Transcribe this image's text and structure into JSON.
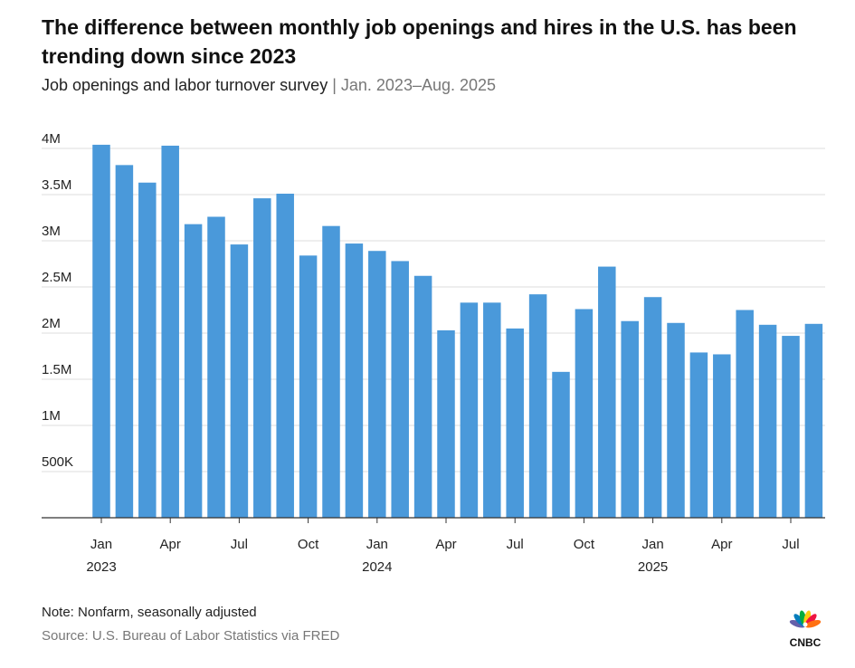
{
  "title": "The difference between monthly job openings and hires in the U.S. has been trending down since 2023",
  "subtitle": "Job openings and labor turnover survey",
  "subtitle_separator": " | ",
  "subtitle_range": "Jan. 2023–Aug. 2025",
  "note": "Note: Nonfarm, seasonally adjusted",
  "source": "Source: U.S. Bureau of Labor Statistics via FRED",
  "logo_text": "CNBC",
  "colors": {
    "bar": "#4a99da",
    "grid": "#dddddd",
    "axis": "#333333"
  },
  "chart_data": {
    "type": "bar",
    "title": "The difference between monthly job openings and hires in the U.S. has been trending down since 2023",
    "xlabel": "",
    "ylabel": "",
    "ylim": [
      0,
      4000000
    ],
    "grid": true,
    "y_ticks": [
      {
        "value": 500000,
        "label": "500K"
      },
      {
        "value": 1000000,
        "label": "1M"
      },
      {
        "value": 1500000,
        "label": "1.5M"
      },
      {
        "value": 2000000,
        "label": "2M"
      },
      {
        "value": 2500000,
        "label": "2.5M"
      },
      {
        "value": 3000000,
        "label": "3M"
      },
      {
        "value": 3500000,
        "label": "3.5M"
      },
      {
        "value": 4000000,
        "label": "4M"
      }
    ],
    "x_ticks": [
      {
        "index": 0,
        "month": "Jan",
        "year": "2023"
      },
      {
        "index": 3,
        "month": "Apr",
        "year": ""
      },
      {
        "index": 6,
        "month": "Jul",
        "year": ""
      },
      {
        "index": 9,
        "month": "Oct",
        "year": ""
      },
      {
        "index": 12,
        "month": "Jan",
        "year": "2024"
      },
      {
        "index": 15,
        "month": "Apr",
        "year": ""
      },
      {
        "index": 18,
        "month": "Jul",
        "year": ""
      },
      {
        "index": 21,
        "month": "Oct",
        "year": ""
      },
      {
        "index": 24,
        "month": "Jan",
        "year": "2025"
      },
      {
        "index": 27,
        "month": "Apr",
        "year": ""
      },
      {
        "index": 30,
        "month": "Jul",
        "year": ""
      }
    ],
    "categories": [
      "2023-01",
      "2023-02",
      "2023-03",
      "2023-04",
      "2023-05",
      "2023-06",
      "2023-07",
      "2023-08",
      "2023-09",
      "2023-10",
      "2023-11",
      "2023-12",
      "2024-01",
      "2024-02",
      "2024-03",
      "2024-04",
      "2024-05",
      "2024-06",
      "2024-07",
      "2024-08",
      "2024-09",
      "2024-10",
      "2024-11",
      "2024-12",
      "2025-01",
      "2025-02",
      "2025-03",
      "2025-04",
      "2025-05",
      "2025-06",
      "2025-07",
      "2025-08"
    ],
    "values": [
      4040000,
      3820000,
      3630000,
      4030000,
      3180000,
      3260000,
      2960000,
      3460000,
      3510000,
      2840000,
      3160000,
      2970000,
      2890000,
      2780000,
      2620000,
      2030000,
      2330000,
      2330000,
      2050000,
      2420000,
      1580000,
      2260000,
      2720000,
      2130000,
      2390000,
      2110000,
      1790000,
      1770000,
      2250000,
      2090000,
      1970000,
      2100000
    ]
  }
}
